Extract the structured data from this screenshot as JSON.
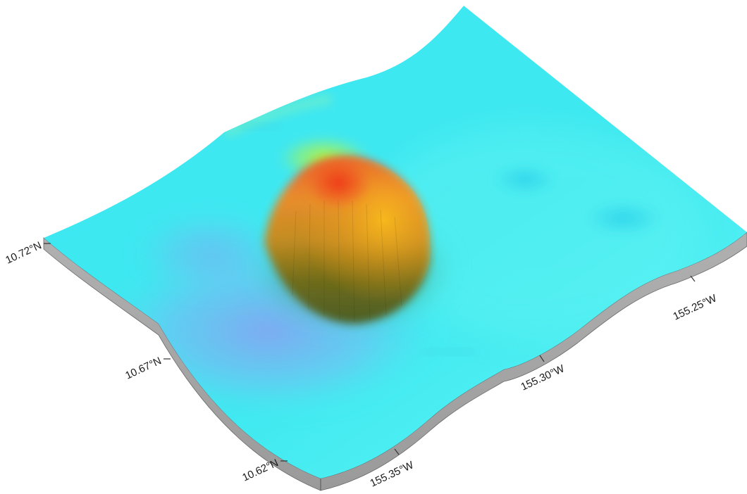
{
  "map": {
    "type": "3d-bathymetric-surface",
    "feature": "seamount",
    "colors": {
      "base": "#38e3ef",
      "base_light": "#5ff4f4",
      "low_purple": "#8c9cf2",
      "mid_green": "#b4f230",
      "peak_orange": "#f2a020",
      "summit_red": "#f03a1c",
      "slope_shadow": "#4a5a20",
      "block_side": "#a7a7a7",
      "block_side_dark": "#8f8f8f"
    },
    "latitude_ticks": [
      {
        "id": "lat-1072",
        "label": "10.72°N",
        "value": 10.72
      },
      {
        "id": "lat-1067",
        "label": "10.67°N",
        "value": 10.67
      },
      {
        "id": "lat-1062",
        "label": "10.62°N",
        "value": 10.62
      }
    ],
    "longitude_ticks": [
      {
        "id": "lon-15535",
        "label": "155.35°W",
        "value": -155.35
      },
      {
        "id": "lon-15530",
        "label": "155.30°W",
        "value": -155.3
      },
      {
        "id": "lon-15525",
        "label": "155.25°W",
        "value": -155.25
      }
    ]
  }
}
